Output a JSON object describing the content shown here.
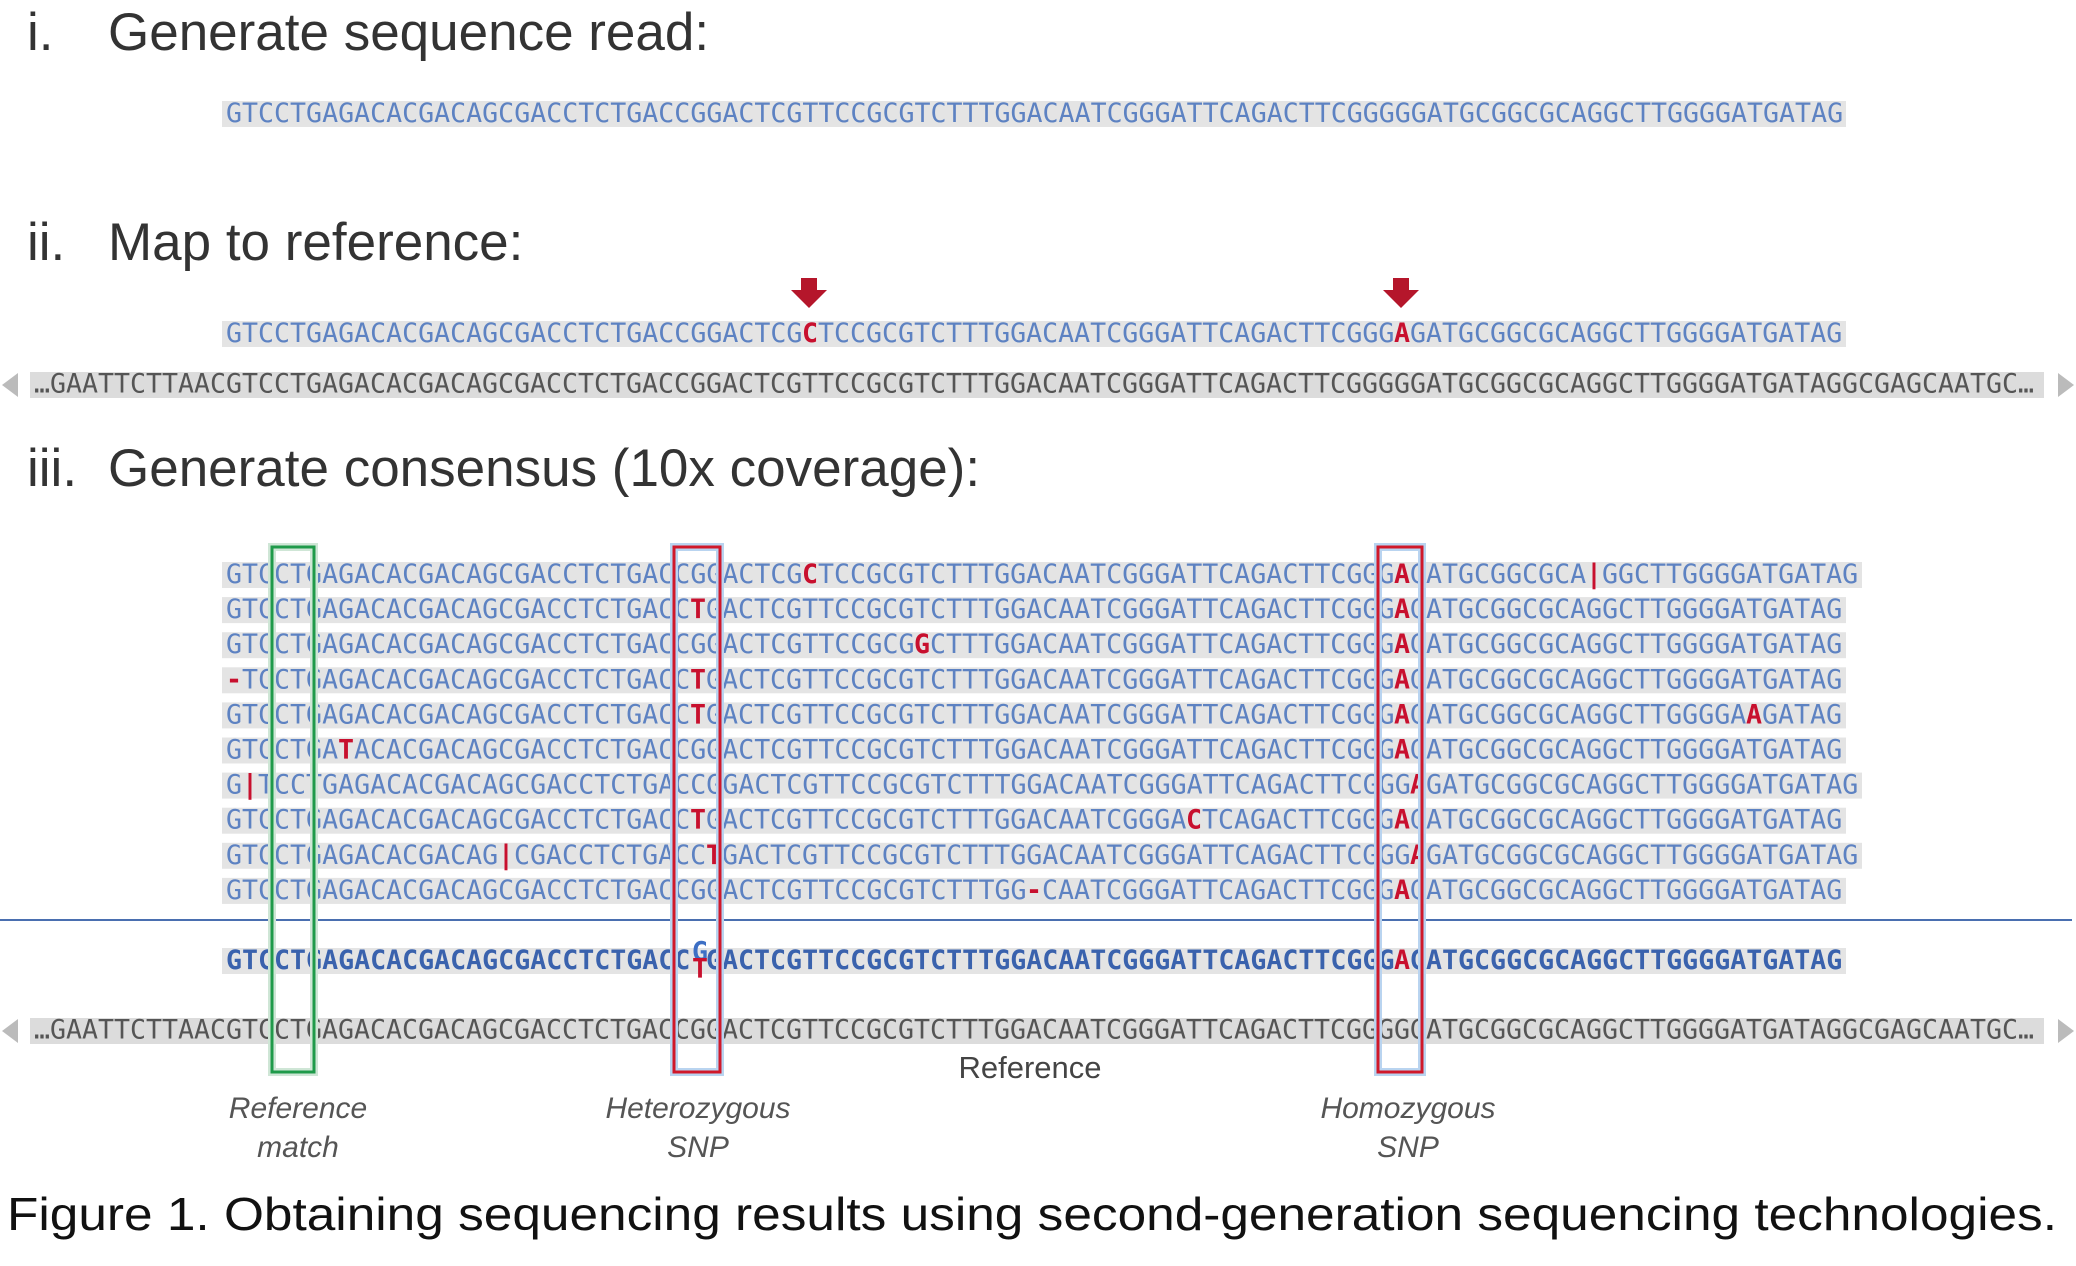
{
  "steps": [
    {
      "numeral": "i.",
      "title": "Generate sequence read:"
    },
    {
      "numeral": "ii.",
      "title": "Map to reference:"
    },
    {
      "numeral": "iii.",
      "title": "Generate consensus (10x coverage):"
    }
  ],
  "read": [
    {
      "t": "GTCCTGAGACACGACAGCGACCTCTGACCGGACTCGTTCCGCGTCTTTGGACAATCGGGATTCAGACTTCGGGGGATGCGGCGCAGGCTTGGGGATGATAG"
    }
  ],
  "mapped_read": [
    {
      "t": "GTCCTGAGACACGACAGCGACCTCTGACCGGACTCG"
    },
    {
      "t": "C",
      "variant": true
    },
    {
      "t": "TCCGCGTCTTTGGACAATCGGGATTCAGACTTCGGG"
    },
    {
      "t": "A",
      "variant": true
    },
    {
      "t": "GATGCGGCGCAGGCTTGGGGATGATAG"
    }
  ],
  "reference": "…GAATTCTTAACGTCCTGAGACACGACAGCGACCTCTGACCGGACTCGTTCCGCGTCTTTGGACAATCGGGATTCAGACTTCGGGGGATGCGGCGCAGGCTTGGGGATGATAGGCGAGCAATGC…",
  "reads": [
    [
      {
        "t": "GTCCTGAGACACGACAGCGACCTCTGACCGGACTCG"
      },
      {
        "t": "C",
        "variant": true
      },
      {
        "t": "TCCGCGTCTTTGGACAATCGGGATTCAGACTTCGGG"
      },
      {
        "t": "A",
        "variant": true
      },
      {
        "t": "GATGCGGCGCA"
      },
      {
        "t": "|",
        "variant": true
      },
      {
        "t": "GGCTTGGGGATGATAG"
      }
    ],
    [
      {
        "t": "GTCCTGAGACACGACAGCGACCTCTGACC"
      },
      {
        "t": "T",
        "variant": true
      },
      {
        "t": "GACTCGTTCCGCGTCTTTGGACAATCGGGATTCAGACTTCGGG"
      },
      {
        "t": "A",
        "variant": true
      },
      {
        "t": "GATGCGGCGCAGGCTTGGGGATGATAG"
      }
    ],
    [
      {
        "t": "GTCCTGAGACACGACAGCGACCTCTGACCGGACTCGTTCCGCG"
      },
      {
        "t": "G",
        "variant": true
      },
      {
        "t": "CTTTGGACAATCGGGATTCAGACTTCGGG"
      },
      {
        "t": "A",
        "variant": true
      },
      {
        "t": "GATGCGGCGCAGGCTTGGGGATGATAG"
      }
    ],
    [
      {
        "t": "-",
        "variant": true
      },
      {
        "t": "TCCTGAGACACGACAGCGACCTCTGACC"
      },
      {
        "t": "T",
        "variant": true
      },
      {
        "t": "GACTCGTTCCGCGTCTTTGGACAATCGGGATTCAGACTTCGGG"
      },
      {
        "t": "A",
        "variant": true
      },
      {
        "t": "GATGCGGCGCAGGCTTGGGGATGATAG"
      }
    ],
    [
      {
        "t": "GTCCTGAGACACGACAGCGACCTCTGACC"
      },
      {
        "t": "T",
        "variant": true
      },
      {
        "t": "GACTCGTTCCGCGTCTTTGGACAATCGGGATTCAGACTTCGGG"
      },
      {
        "t": "A",
        "variant": true
      },
      {
        "t": "GATGCGGCGCAGGCTTGGGGA"
      },
      {
        "t": "A",
        "variant": true
      },
      {
        "t": "GATAG"
      }
    ],
    [
      {
        "t": "GTCCTGA"
      },
      {
        "t": "T",
        "variant": true
      },
      {
        "t": "ACACGACAGCGACCTCTGACCGGACTCGTTCCGCGTCTTTGGACAATCGGGATTCAGACTTCGGG"
      },
      {
        "t": "A",
        "variant": true
      },
      {
        "t": "GATGCGGCGCAGGCTTGGGGATGATAG"
      }
    ],
    [
      {
        "t": "G"
      },
      {
        "t": "|",
        "variant": true
      },
      {
        "t": "TCCTGAGACACGACAGCGACCTCTGACCGGACTCGTTCCGCGTCTTTGGACAATCGGGATTCAGACTTCGGG"
      },
      {
        "t": "A",
        "variant": true
      },
      {
        "t": "GATGCGGCGCAGGCTTGGGGATGATAG"
      }
    ],
    [
      {
        "t": "GTCCTGAGACACGACAGCGACCTCTGACC"
      },
      {
        "t": "T",
        "variant": true
      },
      {
        "t": "GACTCGTTCCGCGTCTTTGGACAATCGGGA"
      },
      {
        "t": "C",
        "variant": true
      },
      {
        "t": "TCAGACTTCGGG"
      },
      {
        "t": "A",
        "variant": true
      },
      {
        "t": "GATGCGGCGCAGGCTTGGGGATGATAG"
      }
    ],
    [
      {
        "t": "GTCCTGAGACACGACAG"
      },
      {
        "t": "|",
        "variant": true
      },
      {
        "t": "CGACCTCTGACC"
      },
      {
        "t": "T",
        "variant": true
      },
      {
        "t": "GACTCGTTCCGCGTCTTTGGACAATCGGGATTCAGACTTCGGG"
      },
      {
        "t": "A",
        "variant": true
      },
      {
        "t": "GATGCGGCGCAGGCTTGGGGATGATAG"
      }
    ],
    [
      {
        "t": "GTCCTGAGACACGACAGCGACCTCTGACCGGACTCGTTCCGCGTCTTTGG"
      },
      {
        "t": "-",
        "variant": true
      },
      {
        "t": "CAATCGGGATTCAGACTTCGGG"
      },
      {
        "t": "A",
        "variant": true
      },
      {
        "t": "GATGCGGCGCAGGCTTGGGGATGATAG"
      }
    ]
  ],
  "consensus": [
    {
      "t": "GTCCTGAGACACGACAGCGACCTCTGACC"
    },
    {
      "top": "G",
      "bottom": "T"
    },
    {
      "t": "GACTCGTTCCGCGTCTTTGGACAATCGGGATTCAGACTTCGGG"
    },
    {
      "t": "A",
      "variant": true
    },
    {
      "t": "GATGCGGCGCAGGCTTGGGGATGATAG"
    }
  ],
  "reference_label": "Reference",
  "annotations": [
    {
      "line1": "Reference",
      "line2": "match"
    },
    {
      "line1": "Heterozygous",
      "line2": "SNP"
    },
    {
      "line1": "Homozygous",
      "line2": "SNP"
    }
  ],
  "caption": "Figure 1.  Obtaining sequencing results using second-generation sequencing technologies."
}
